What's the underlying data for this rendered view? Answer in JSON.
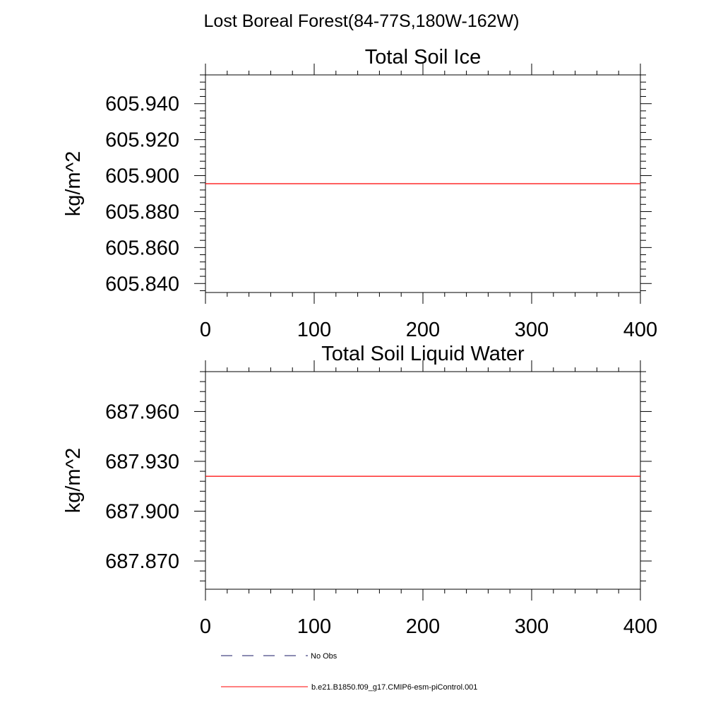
{
  "figure_title": "Lost Boreal Forest(84-77S,180W-162W)",
  "chart_data": [
    {
      "type": "line",
      "title": "Total Soil Ice",
      "xlabel": "",
      "ylabel": "kg/m^2",
      "xlim": [
        0,
        400
      ],
      "ylim": [
        605.835,
        605.956
      ],
      "x_ticks": [
        0,
        100,
        200,
        300,
        400
      ],
      "x_tick_labels": [
        "0",
        "100",
        "200",
        "300",
        "400"
      ],
      "y_ticks": [
        605.84,
        605.86,
        605.88,
        605.9,
        605.92,
        605.94
      ],
      "y_tick_labels": [
        "605.840",
        "605.860",
        "605.880",
        "605.900",
        "605.920",
        "605.940"
      ],
      "grid": false,
      "series": [
        {
          "name": "b.e21.B1850.f09_g17.CMIP6-esm-piControl.001",
          "color": "#ff0000",
          "x": [
            0,
            400
          ],
          "y": [
            605.8955,
            605.8955
          ]
        }
      ]
    },
    {
      "type": "line",
      "title": "Total Soil Liquid Water",
      "xlabel": "",
      "ylabel": "kg/m^2",
      "xlim": [
        0,
        400
      ],
      "ylim": [
        687.853,
        687.984
      ],
      "x_ticks": [
        0,
        100,
        200,
        300,
        400
      ],
      "x_tick_labels": [
        "0",
        "100",
        "200",
        "300",
        "400"
      ],
      "y_ticks": [
        687.87,
        687.9,
        687.93,
        687.96
      ],
      "y_tick_labels": [
        "687.870",
        "687.900",
        "687.930",
        "687.960"
      ],
      "grid": false,
      "series": [
        {
          "name": "b.e21.B1850.f09_g17.CMIP6-esm-piControl.001",
          "color": "#ff0000",
          "x": [
            0,
            400
          ],
          "y": [
            687.921,
            687.921
          ]
        }
      ]
    }
  ],
  "legend": {
    "items": [
      {
        "label": "No Obs",
        "color": "#1a1a66",
        "style": "dashed"
      },
      {
        "label": "b.e21.B1850.f09_g17.CMIP6-esm-piControl.001",
        "color": "#ff0000",
        "style": "solid"
      }
    ]
  }
}
